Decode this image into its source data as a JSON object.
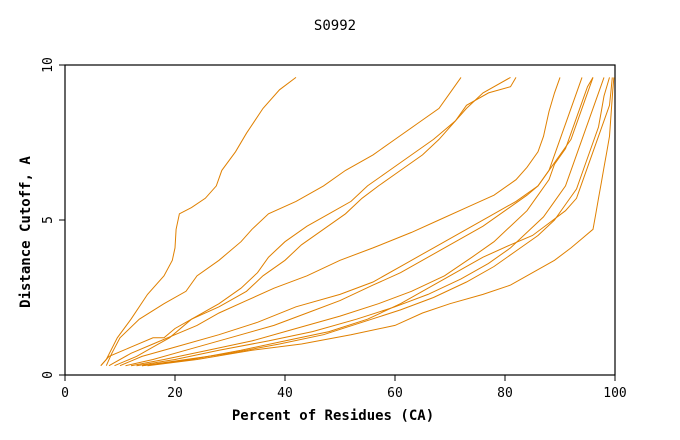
{
  "chart_data": {
    "type": "line",
    "title": "S0992",
    "xlabel": "Percent of Residues (CA)",
    "ylabel": "Distance Cutoff, A",
    "xlim": [
      0,
      100
    ],
    "ylim": [
      0,
      10
    ],
    "xticks": [
      0,
      20,
      40,
      60,
      80,
      100
    ],
    "yticks": [
      0,
      5,
      10
    ],
    "grid": false,
    "line_color": "#e08000",
    "series": [
      {
        "points": [
          [
            6.5,
            0.3
          ],
          [
            7.5,
            0.5
          ],
          [
            9.5,
            1.2
          ],
          [
            12,
            1.8
          ],
          [
            15,
            2.6
          ],
          [
            18,
            3.2
          ],
          [
            19.5,
            3.7
          ],
          [
            20,
            4.1
          ],
          [
            20.2,
            4.7
          ],
          [
            20.8,
            5.2
          ],
          [
            23,
            5.4
          ],
          [
            25.5,
            5.7
          ],
          [
            27.5,
            6.1
          ],
          [
            28.5,
            6.6
          ],
          [
            31,
            7.2
          ],
          [
            33,
            7.8
          ],
          [
            36,
            8.6
          ],
          [
            39,
            9.2
          ],
          [
            42,
            9.6
          ]
        ]
      },
      {
        "points": [
          [
            7.5,
            0.3
          ],
          [
            8.5,
            0.7
          ],
          [
            10,
            1.2
          ],
          [
            13.5,
            1.8
          ],
          [
            18,
            2.3
          ],
          [
            22,
            2.7
          ],
          [
            24,
            3.2
          ],
          [
            28,
            3.7
          ],
          [
            32,
            4.3
          ],
          [
            34,
            4.7
          ],
          [
            37,
            5.2
          ],
          [
            42,
            5.6
          ],
          [
            47,
            6.1
          ],
          [
            51,
            6.6
          ],
          [
            56,
            7.1
          ],
          [
            60,
            7.6
          ],
          [
            64,
            8.1
          ],
          [
            68,
            8.6
          ],
          [
            70,
            9.1
          ],
          [
            72,
            9.6
          ]
        ]
      },
      {
        "points": [
          [
            6.5,
            0.3
          ],
          [
            8,
            0.6
          ],
          [
            12,
            0.9
          ],
          [
            16,
            1.2
          ],
          [
            18,
            1.2
          ],
          [
            20,
            1.5
          ],
          [
            23,
            1.8
          ],
          [
            28,
            2.2
          ],
          [
            33,
            2.7
          ],
          [
            36,
            3.2
          ],
          [
            40,
            3.7
          ],
          [
            43,
            4.2
          ],
          [
            47,
            4.7
          ],
          [
            51,
            5.2
          ],
          [
            54,
            5.7
          ],
          [
            57,
            6.1
          ],
          [
            61,
            6.6
          ],
          [
            65,
            7.1
          ],
          [
            68,
            7.6
          ],
          [
            71,
            8.2
          ],
          [
            73,
            8.6
          ],
          [
            76,
            9.1
          ],
          [
            81,
            9.6
          ]
        ]
      },
      {
        "points": [
          [
            9,
            0.3
          ],
          [
            13,
            0.6
          ],
          [
            16,
            0.9
          ],
          [
            19,
            1.2
          ],
          [
            23,
            1.8
          ],
          [
            28,
            2.3
          ],
          [
            32,
            2.8
          ],
          [
            35,
            3.3
          ],
          [
            37,
            3.8
          ],
          [
            40,
            4.3
          ],
          [
            44,
            4.8
          ],
          [
            48,
            5.2
          ],
          [
            52,
            5.6
          ],
          [
            55,
            6.1
          ],
          [
            59,
            6.6
          ],
          [
            63,
            7.1
          ],
          [
            67,
            7.6
          ],
          [
            71,
            8.2
          ],
          [
            73,
            8.7
          ],
          [
            77,
            9.1
          ],
          [
            81,
            9.3
          ],
          [
            82,
            9.6
          ]
        ]
      },
      {
        "points": [
          [
            8,
            0.3
          ],
          [
            12,
            0.7
          ],
          [
            16,
            1.0
          ],
          [
            20,
            1.3
          ],
          [
            24,
            1.6
          ],
          [
            28,
            2.0
          ],
          [
            33,
            2.4
          ],
          [
            38,
            2.8
          ],
          [
            44,
            3.2
          ],
          [
            50,
            3.7
          ],
          [
            56,
            4.1
          ],
          [
            63,
            4.6
          ],
          [
            68,
            5.0
          ],
          [
            73,
            5.4
          ],
          [
            78,
            5.8
          ],
          [
            82,
            6.3
          ],
          [
            84,
            6.7
          ],
          [
            86,
            7.2
          ],
          [
            87,
            7.7
          ],
          [
            88,
            8.5
          ],
          [
            89,
            9.1
          ],
          [
            90,
            9.6
          ]
        ]
      },
      {
        "points": [
          [
            10,
            0.3
          ],
          [
            14,
            0.6
          ],
          [
            20,
            0.9
          ],
          [
            28,
            1.3
          ],
          [
            35,
            1.7
          ],
          [
            42,
            2.2
          ],
          [
            50,
            2.6
          ],
          [
            56,
            3.0
          ],
          [
            62,
            3.6
          ],
          [
            67,
            4.1
          ],
          [
            72,
            4.6
          ],
          [
            77,
            5.1
          ],
          [
            82,
            5.6
          ],
          [
            86,
            6.1
          ],
          [
            88,
            6.6
          ],
          [
            90,
            7.1
          ],
          [
            92,
            7.6
          ],
          [
            93,
            8.1
          ],
          [
            94,
            8.6
          ],
          [
            95,
            9.1
          ],
          [
            96,
            9.6
          ]
        ]
      },
      {
        "points": [
          [
            11,
            0.3
          ],
          [
            16,
            0.5
          ],
          [
            22,
            0.8
          ],
          [
            30,
            1.2
          ],
          [
            38,
            1.6
          ],
          [
            44,
            2.0
          ],
          [
            50,
            2.4
          ],
          [
            56,
            2.9
          ],
          [
            61,
            3.3
          ],
          [
            66,
            3.8
          ],
          [
            71,
            4.3
          ],
          [
            76,
            4.8
          ],
          [
            80,
            5.3
          ],
          [
            84,
            5.8
          ],
          [
            86,
            6.1
          ],
          [
            88,
            6.6
          ],
          [
            89,
            7.1
          ],
          [
            90,
            7.6
          ],
          [
            91,
            8.1
          ],
          [
            92,
            8.6
          ],
          [
            93,
            9.1
          ],
          [
            94,
            9.6
          ]
        ]
      },
      {
        "points": [
          [
            12,
            0.3
          ],
          [
            18,
            0.5
          ],
          [
            26,
            0.8
          ],
          [
            34,
            1.1
          ],
          [
            42,
            1.5
          ],
          [
            50,
            1.9
          ],
          [
            57,
            2.3
          ],
          [
            63,
            2.7
          ],
          [
            69,
            3.2
          ],
          [
            74,
            3.8
          ],
          [
            78,
            4.3
          ],
          [
            81,
            4.8
          ],
          [
            84,
            5.3
          ],
          [
            86,
            5.8
          ],
          [
            88,
            6.3
          ],
          [
            89,
            6.8
          ],
          [
            91,
            7.3
          ],
          [
            92,
            7.8
          ],
          [
            93,
            8.3
          ],
          [
            94,
            8.8
          ],
          [
            95,
            9.3
          ],
          [
            96,
            9.6
          ]
        ]
      },
      {
        "points": [
          [
            13,
            0.3
          ],
          [
            20,
            0.5
          ],
          [
            28,
            0.8
          ],
          [
            37,
            1.1
          ],
          [
            45,
            1.4
          ],
          [
            53,
            1.8
          ],
          [
            60,
            2.2
          ],
          [
            66,
            2.6
          ],
          [
            72,
            3.1
          ],
          [
            77,
            3.6
          ],
          [
            81,
            4.1
          ],
          [
            84,
            4.6
          ],
          [
            87,
            5.1
          ],
          [
            89,
            5.6
          ],
          [
            91,
            6.1
          ],
          [
            92,
            6.6
          ],
          [
            93,
            7.1
          ],
          [
            94,
            7.6
          ],
          [
            95,
            8.1
          ],
          [
            96,
            8.6
          ],
          [
            97,
            9.1
          ],
          [
            98,
            9.6
          ]
        ]
      },
      {
        "points": [
          [
            14,
            0.3
          ],
          [
            22,
            0.5
          ],
          [
            30,
            0.7
          ],
          [
            39,
            1.0
          ],
          [
            47,
            1.3
          ],
          [
            54,
            1.7
          ],
          [
            61,
            2.1
          ],
          [
            67,
            2.5
          ],
          [
            73,
            3.0
          ],
          [
            78,
            3.5
          ],
          [
            82,
            4.0
          ],
          [
            86,
            4.5
          ],
          [
            89,
            5.0
          ],
          [
            91,
            5.5
          ],
          [
            93,
            6.0
          ],
          [
            94,
            6.5
          ],
          [
            95,
            7.0
          ],
          [
            96,
            7.5
          ],
          [
            97,
            8.0
          ],
          [
            97.5,
            8.5
          ],
          [
            98,
            9.0
          ],
          [
            99,
            9.6
          ]
        ]
      },
      {
        "points": [
          [
            14,
            0.3
          ],
          [
            23,
            0.5
          ],
          [
            32,
            0.8
          ],
          [
            40,
            1.1
          ],
          [
            48,
            1.4
          ],
          [
            55,
            1.8
          ],
          [
            61,
            2.3
          ],
          [
            66,
            2.8
          ],
          [
            71,
            3.3
          ],
          [
            76,
            3.8
          ],
          [
            81,
            4.2
          ],
          [
            85,
            4.5
          ],
          [
            88,
            4.9
          ],
          [
            91,
            5.3
          ],
          [
            93,
            5.7
          ],
          [
            94,
            6.2
          ],
          [
            95,
            6.7
          ],
          [
            96,
            7.2
          ],
          [
            97,
            7.7
          ],
          [
            98,
            8.2
          ],
          [
            99,
            8.7
          ],
          [
            99.3,
            9.2
          ],
          [
            99.5,
            9.6
          ]
        ]
      },
      {
        "points": [
          [
            15,
            0.3
          ],
          [
            24,
            0.5
          ],
          [
            34,
            0.8
          ],
          [
            43,
            1.0
          ],
          [
            52,
            1.3
          ],
          [
            60,
            1.6
          ],
          [
            65,
            2.0
          ],
          [
            70,
            2.3
          ],
          [
            76,
            2.6
          ],
          [
            81,
            2.9
          ],
          [
            85,
            3.3
          ],
          [
            89,
            3.7
          ],
          [
            92,
            4.1
          ],
          [
            94,
            4.4
          ],
          [
            96,
            4.7
          ],
          [
            96.5,
            5.2
          ],
          [
            97,
            5.7
          ],
          [
            97.5,
            6.2
          ],
          [
            98,
            6.7
          ],
          [
            98.5,
            7.2
          ],
          [
            99,
            7.7
          ],
          [
            99.2,
            8.2
          ],
          [
            99.4,
            8.7
          ],
          [
            99.6,
            9.2
          ],
          [
            99.8,
            9.6
          ]
        ]
      }
    ]
  }
}
